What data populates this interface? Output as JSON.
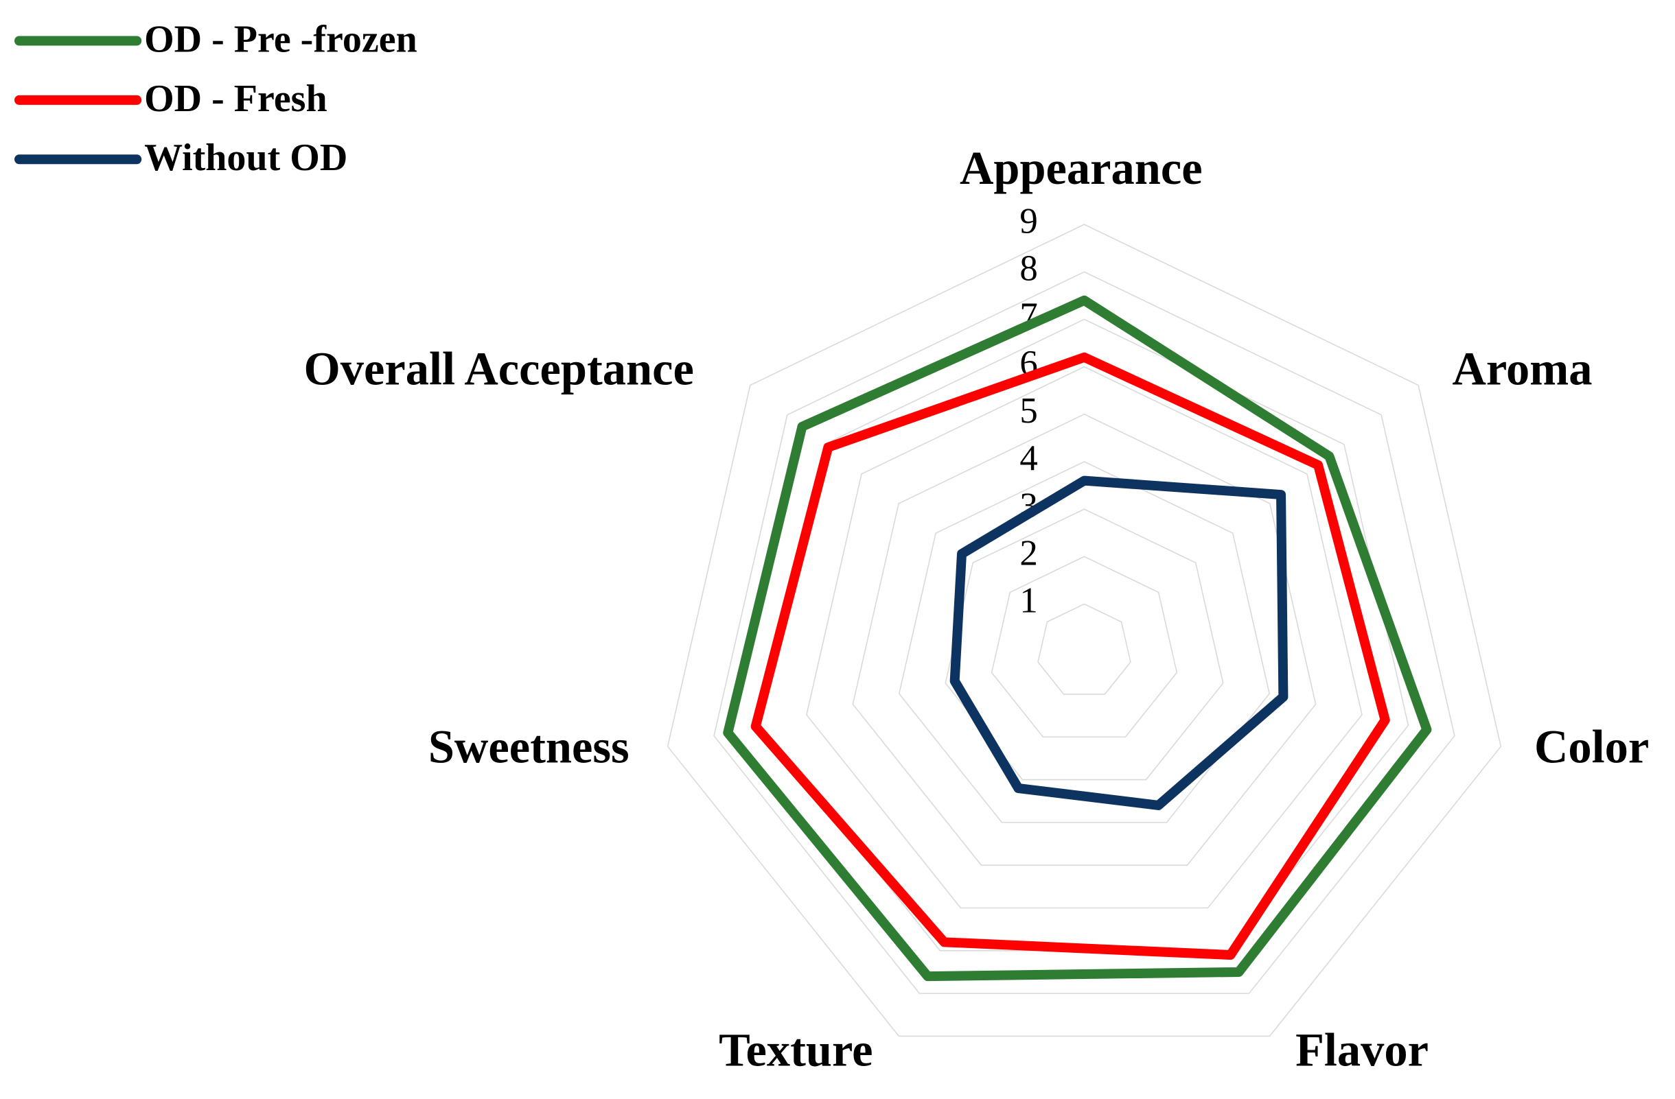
{
  "chart_data": {
    "type": "radar",
    "categories": [
      "Appearance",
      "Aroma",
      "Color",
      "Flavor",
      "Texture",
      "Sweetness",
      "Overall Acceptance"
    ],
    "series": [
      {
        "name": "OD - Pre -frozen",
        "color": "#2e7d32",
        "values": [
          7.4,
          6.6,
          7.4,
          7.5,
          7.6,
          7.7,
          7.6
        ]
      },
      {
        "name": "OD - Fresh",
        "color": "#ff0000",
        "values": [
          6.2,
          6.3,
          6.5,
          7.1,
          6.8,
          7.1,
          6.9
        ]
      },
      {
        "name": "Without OD",
        "color": "#0d3360",
        "values": [
          3.6,
          5.3,
          4.3,
          3.6,
          3.2,
          2.8,
          3.3
        ]
      }
    ],
    "ylim": [
      0,
      9
    ],
    "yticks": [
      1,
      2,
      3,
      4,
      5,
      6,
      7,
      8,
      9
    ],
    "grid": true,
    "legend": "top-left"
  }
}
